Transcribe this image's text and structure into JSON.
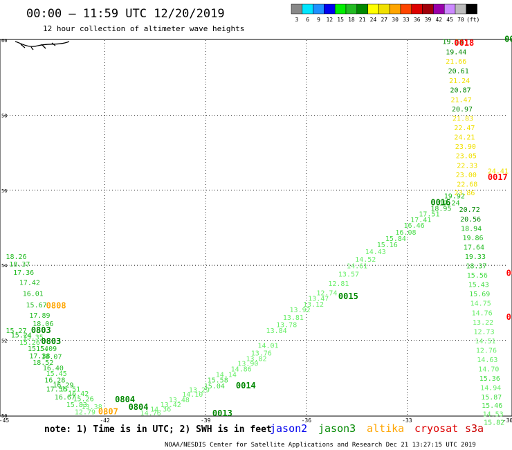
{
  "header": {
    "title": "00:00 — 11:59 UTC 12/20/2019",
    "subtitle": "12 hour collection of altimeter wave heights"
  },
  "legend_scale": {
    "labels": [
      "3",
      "6",
      "9",
      "12",
      "15",
      "18",
      "21",
      "24",
      "27",
      "30",
      "33",
      "36",
      "39",
      "42",
      "45",
      "70",
      "(ft)"
    ],
    "colors": [
      "#888888",
      "#00e5ff",
      "#1e90ff",
      "#0000ee",
      "#00ee00",
      "#22bb22",
      "#008800",
      "#ffff00",
      "#f0e000",
      "#ffa500",
      "#ff4500",
      "#dd0000",
      "#a0000a",
      "#9900aa",
      "#cc88ff",
      "#bbbbbb",
      "#000000"
    ]
  },
  "footer": {
    "note": "note: 1) Time is in UTC; 2) SWH is in feet",
    "satellites": [
      {
        "name": "jason2",
        "color": "#0000ee"
      },
      {
        "name": "jason3",
        "color": "#008800"
      },
      {
        "name": "altika",
        "color": "#ffa500"
      },
      {
        "name": "cryosat",
        "color": "#dd0000"
      },
      {
        "name": "s3a",
        "color": "#cc0000"
      }
    ],
    "credit": "NOAA/NESDIS Center for Satellite Applications and Research    Dec 21 13:27:15 UTC 2019"
  },
  "chart_data": {
    "type": "scatter",
    "x_ticks": [
      "-45",
      "-42",
      "-39",
      "-36",
      "-33",
      "-30"
    ],
    "y_ticks": [
      "60",
      "58",
      "56",
      "54",
      "52",
      "50"
    ],
    "xlim": [
      -45,
      -30
    ],
    "ylim": [
      50,
      60
    ],
    "grid": true,
    "time_labels": [
      {
        "text": "0808",
        "x": -43.75,
        "y": 52.85,
        "color": "#ffa500"
      },
      {
        "text": "0803",
        "x": -44.2,
        "y": 52.2,
        "color": "#008800"
      },
      {
        "text": "0803",
        "x": -43.9,
        "y": 51.9,
        "color": "#008800"
      },
      {
        "text": "0807",
        "x": -42.2,
        "y": 50.03,
        "color": "#ffa500"
      },
      {
        "text": "0804",
        "x": -41.7,
        "y": 50.35,
        "color": "#008800"
      },
      {
        "text": "0804",
        "x": -41.3,
        "y": 50.15,
        "color": "#008800"
      },
      {
        "text": "0013",
        "x": -38.8,
        "y": 49.98,
        "color": "#008800"
      },
      {
        "text": "0014",
        "x": -38.1,
        "y": 50.72,
        "color": "#008800"
      },
      {
        "text": "0015",
        "x": -35.05,
        "y": 53.1,
        "color": "#008800"
      },
      {
        "text": "0016",
        "x": -32.3,
        "y": 55.6,
        "color": "#008800"
      },
      {
        "text": "0018",
        "x": -31.6,
        "y": 59.85,
        "color": "#ff0000"
      },
      {
        "text": "0017",
        "x": -30.6,
        "y": 56.27,
        "color": "#ff0000"
      },
      {
        "text": "00",
        "x": -30.1,
        "y": 59.95,
        "color": "#008800"
      },
      {
        "text": "00",
        "x": -30.05,
        "y": 53.72,
        "color": "#ff0000"
      },
      {
        "text": "0",
        "x": -30.05,
        "y": 52.55,
        "color": "#ff0000"
      }
    ],
    "tracks": [
      {
        "name": "west_track",
        "points": [
          {
            "v": "18.26",
            "x": -44.95,
            "y": 54.17,
            "color": "#22bb22"
          },
          {
            "v": "18.37",
            "x": -44.85,
            "y": 53.97,
            "color": "#22bb22"
          },
          {
            "v": "17.36",
            "x": -44.73,
            "y": 53.75,
            "color": "#22bb22"
          },
          {
            "v": "17.42",
            "x": -44.55,
            "y": 53.48,
            "color": "#22bb22"
          },
          {
            "v": "16.01",
            "x": -44.45,
            "y": 53.18,
            "color": "#22bb22"
          },
          {
            "v": "15.67",
            "x": -44.35,
            "y": 52.88,
            "color": "#22bb22"
          },
          {
            "v": "17.89",
            "x": -44.25,
            "y": 52.6,
            "color": "#22bb22"
          },
          {
            "v": "18.06",
            "x": -44.15,
            "y": 52.38,
            "color": "#22bb22"
          },
          {
            "v": "15.27",
            "x": -44.95,
            "y": 52.2,
            "color": "#22bb22"
          },
          {
            "v": "15.24",
            "x": -44.8,
            "y": 52.08,
            "color": "#22bb22"
          },
          {
            "v": "15.35",
            "x": -44.45,
            "y": 52.02,
            "color": "#44dd44"
          },
          {
            "v": "15.26",
            "x": -44.55,
            "y": 51.88,
            "color": "#44dd44"
          },
          {
            "v": "15.54",
            "x": -44.3,
            "y": 51.72,
            "color": "#22bb22"
          },
          {
            "v": "15.09",
            "x": -44.05,
            "y": 51.72,
            "color": "#22bb22"
          },
          {
            "v": "17.38",
            "x": -44.25,
            "y": 51.52,
            "color": "#22bb22"
          },
          {
            "v": "18.07",
            "x": -43.9,
            "y": 51.5,
            "color": "#22bb22"
          },
          {
            "v": "18.52",
            "x": -44.15,
            "y": 51.35,
            "color": "#22bb22"
          },
          {
            "v": "16.40",
            "x": -43.85,
            "y": 51.2,
            "color": "#22bb22"
          },
          {
            "v": "15.45",
            "x": -43.75,
            "y": 51.05,
            "color": "#44dd44"
          },
          {
            "v": "16.28",
            "x": -43.8,
            "y": 50.88,
            "color": "#22bb22"
          },
          {
            "v": "16.29",
            "x": -43.55,
            "y": 50.75,
            "color": "#22bb22"
          },
          {
            "v": "17.56",
            "x": -43.75,
            "y": 50.64,
            "color": "#22bb22"
          },
          {
            "v": "15.51",
            "x": -43.35,
            "y": 50.64,
            "color": "#44dd44"
          },
          {
            "v": "16.42",
            "x": -43.1,
            "y": 50.52,
            "color": "#44dd44"
          },
          {
            "v": "16.67",
            "x": -43.5,
            "y": 50.42,
            "color": "#22bb22"
          },
          {
            "v": "15.26",
            "x": -42.95,
            "y": 50.38,
            "color": "#44dd44"
          },
          {
            "v": "15.83",
            "x": -43.15,
            "y": 50.22,
            "color": "#44dd44"
          },
          {
            "v": "13.38",
            "x": -42.7,
            "y": 50.17,
            "color": "#66ee66"
          },
          {
            "v": "12.79",
            "x": -42.9,
            "y": 50.03,
            "color": "#66ee66"
          }
        ]
      },
      {
        "name": "jason3_track",
        "points": [
          {
            "v": "14.76",
            "x": -40.95,
            "y": 50.0,
            "color": "#66ee66"
          },
          {
            "v": "14.36",
            "x": -40.65,
            "y": 50.1,
            "color": "#66ee66"
          },
          {
            "v": "13.42",
            "x": -40.35,
            "y": 50.22,
            "color": "#66ee66"
          },
          {
            "v": "13.48",
            "x": -40.1,
            "y": 50.35,
            "color": "#66ee66"
          },
          {
            "v": "14.10",
            "x": -39.7,
            "y": 50.5,
            "color": "#66ee66"
          },
          {
            "v": "13.29",
            "x": -39.5,
            "y": 50.62,
            "color": "#66ee66"
          },
          {
            "v": "15.04",
            "x": -39.05,
            "y": 50.72,
            "color": "#44dd44"
          },
          {
            "v": "15.58",
            "x": -38.95,
            "y": 50.88,
            "color": "#44dd44"
          },
          {
            "v": "14.14",
            "x": -38.7,
            "y": 51.02,
            "color": "#66ee66"
          },
          {
            "v": "14.86",
            "x": -38.25,
            "y": 51.17,
            "color": "#66ee66"
          },
          {
            "v": "13.90",
            "x": -38.05,
            "y": 51.32,
            "color": "#66ee66"
          },
          {
            "v": "13.82",
            "x": -37.8,
            "y": 51.45,
            "color": "#66ee66"
          },
          {
            "v": "14.01",
            "x": -37.45,
            "y": 51.8,
            "color": "#66ee66"
          },
          {
            "v": "13.76",
            "x": -37.65,
            "y": 51.6,
            "color": "#66ee66"
          },
          {
            "v": "13.84",
            "x": -37.2,
            "y": 52.2,
            "color": "#66ee66"
          },
          {
            "v": "13.78",
            "x": -36.9,
            "y": 52.35,
            "color": "#66ee66"
          },
          {
            "v": "13.81",
            "x": -36.7,
            "y": 52.55,
            "color": "#66ee66"
          },
          {
            "v": "13.92",
            "x": -36.5,
            "y": 52.75,
            "color": "#66ee66"
          },
          {
            "v": "13.12",
            "x": -36.1,
            "y": 52.9,
            "color": "#66ee66"
          },
          {
            "v": "13.47",
            "x": -35.95,
            "y": 53.05,
            "color": "#66ee66"
          },
          {
            "v": "12.74",
            "x": -35.7,
            "y": 53.2,
            "color": "#66ee66"
          },
          {
            "v": "12.81",
            "x": -35.35,
            "y": 53.45,
            "color": "#66ee66"
          },
          {
            "v": "13.57",
            "x": -35.05,
            "y": 53.7,
            "color": "#66ee66"
          },
          {
            "v": "14.61",
            "x": -34.8,
            "y": 53.92,
            "color": "#66ee66"
          },
          {
            "v": "14.52",
            "x": -34.55,
            "y": 54.1,
            "color": "#66ee66"
          },
          {
            "v": "14.43",
            "x": -34.25,
            "y": 54.3,
            "color": "#66ee66"
          },
          {
            "v": "15.16",
            "x": -33.9,
            "y": 54.48,
            "color": "#44dd44"
          },
          {
            "v": "15.84",
            "x": -33.65,
            "y": 54.65,
            "color": "#44dd44"
          },
          {
            "v": "16.08",
            "x": -33.35,
            "y": 54.82,
            "color": "#44dd44"
          },
          {
            "v": "16.46",
            "x": -33.1,
            "y": 55.0,
            "color": "#44dd44"
          },
          {
            "v": "17.41",
            "x": -32.9,
            "y": 55.15,
            "color": "#44dd44"
          },
          {
            "v": "17.51",
            "x": -32.65,
            "y": 55.3,
            "color": "#44dd44"
          },
          {
            "v": "18.95",
            "x": -32.3,
            "y": 55.45,
            "color": "#22bb22"
          },
          {
            "v": "19.24",
            "x": -32.05,
            "y": 55.6,
            "color": "#22bb22"
          },
          {
            "v": "19.92",
            "x": -31.9,
            "y": 55.78,
            "color": "#22bb22"
          }
        ]
      },
      {
        "name": "east_track",
        "points": [
          {
            "v": "19.53",
            "x": -31.95,
            "y": 59.9,
            "color": "#008800"
          },
          {
            "v": "19.44",
            "x": -31.85,
            "y": 59.62,
            "color": "#008800"
          },
          {
            "v": "21.66",
            "x": -31.85,
            "y": 59.37,
            "color": "#f0e000"
          },
          {
            "v": "20.61",
            "x": -31.78,
            "y": 59.11,
            "color": "#008800"
          },
          {
            "v": "21.24",
            "x": -31.75,
            "y": 58.86,
            "color": "#f0e000"
          },
          {
            "v": "20.87",
            "x": -31.72,
            "y": 58.61,
            "color": "#008800"
          },
          {
            "v": "21.47",
            "x": -31.7,
            "y": 58.35,
            "color": "#f0e000"
          },
          {
            "v": "20.97",
            "x": -31.67,
            "y": 58.1,
            "color": "#008800"
          },
          {
            "v": "21.83",
            "x": -31.65,
            "y": 57.85,
            "color": "#f0e000"
          },
          {
            "v": "22.47",
            "x": -31.6,
            "y": 57.6,
            "color": "#f0e000"
          },
          {
            "v": "24.21",
            "x": -31.6,
            "y": 57.35,
            "color": "#f0e000"
          },
          {
            "v": "23.90",
            "x": -31.57,
            "y": 57.1,
            "color": "#f0e000"
          },
          {
            "v": "23.05",
            "x": -31.55,
            "y": 56.85,
            "color": "#f0e000"
          },
          {
            "v": "22.33",
            "x": -31.52,
            "y": 56.6,
            "color": "#f0e000"
          },
          {
            "v": "23.00",
            "x": -31.55,
            "y": 56.35,
            "color": "#f0e000"
          },
          {
            "v": "22.68",
            "x": -31.52,
            "y": 56.1,
            "color": "#f0e000"
          },
          {
            "v": "23.86",
            "x": -31.6,
            "y": 55.87,
            "color": "#f0e000"
          },
          {
            "v": "24.41",
            "x": -30.6,
            "y": 56.45,
            "color": "#f0e000"
          },
          {
            "v": "20.72",
            "x": -31.45,
            "y": 55.42,
            "color": "#008800"
          },
          {
            "v": "20.56",
            "x": -31.42,
            "y": 55.17,
            "color": "#008800"
          },
          {
            "v": "18.94",
            "x": -31.4,
            "y": 54.92,
            "color": "#22bb22"
          },
          {
            "v": "19.86",
            "x": -31.35,
            "y": 54.67,
            "color": "#22bb22"
          },
          {
            "v": "17.64",
            "x": -31.32,
            "y": 54.42,
            "color": "#22bb22"
          },
          {
            "v": "19.33",
            "x": -31.28,
            "y": 54.17,
            "color": "#22bb22"
          },
          {
            "v": "18.37",
            "x": -31.25,
            "y": 53.92,
            "color": "#22bb22"
          },
          {
            "v": "15.56",
            "x": -31.22,
            "y": 53.67,
            "color": "#44dd44"
          },
          {
            "v": "15.43",
            "x": -31.18,
            "y": 53.42,
            "color": "#44dd44"
          },
          {
            "v": "15.69",
            "x": -31.15,
            "y": 53.17,
            "color": "#44dd44"
          },
          {
            "v": "14.75",
            "x": -31.12,
            "y": 52.92,
            "color": "#66ee66"
          },
          {
            "v": "14.76",
            "x": -31.08,
            "y": 52.67,
            "color": "#66ee66"
          },
          {
            "v": "13.22",
            "x": -31.05,
            "y": 52.42,
            "color": "#66ee66"
          },
          {
            "v": "12.73",
            "x": -31.02,
            "y": 52.17,
            "color": "#66ee66"
          },
          {
            "v": "14.51",
            "x": -30.98,
            "y": 51.92,
            "color": "#66ee66"
          },
          {
            "v": "12.76",
            "x": -30.95,
            "y": 51.67,
            "color": "#66ee66"
          },
          {
            "v": "14.63",
            "x": -30.92,
            "y": 51.42,
            "color": "#66ee66"
          },
          {
            "v": "14.70",
            "x": -30.88,
            "y": 51.17,
            "color": "#66ee66"
          },
          {
            "v": "15.36",
            "x": -30.85,
            "y": 50.92,
            "color": "#44dd44"
          },
          {
            "v": "14.94",
            "x": -30.82,
            "y": 50.67,
            "color": "#66ee66"
          },
          {
            "v": "15.87",
            "x": -30.8,
            "y": 50.42,
            "color": "#44dd44"
          },
          {
            "v": "15.46",
            "x": -30.78,
            "y": 50.2,
            "color": "#44dd44"
          },
          {
            "v": "14.53",
            "x": -30.75,
            "y": 49.97,
            "color": "#66ee66"
          },
          {
            "v": "15.82",
            "x": -30.72,
            "y": 49.75,
            "color": "#44dd44"
          }
        ]
      }
    ]
  }
}
